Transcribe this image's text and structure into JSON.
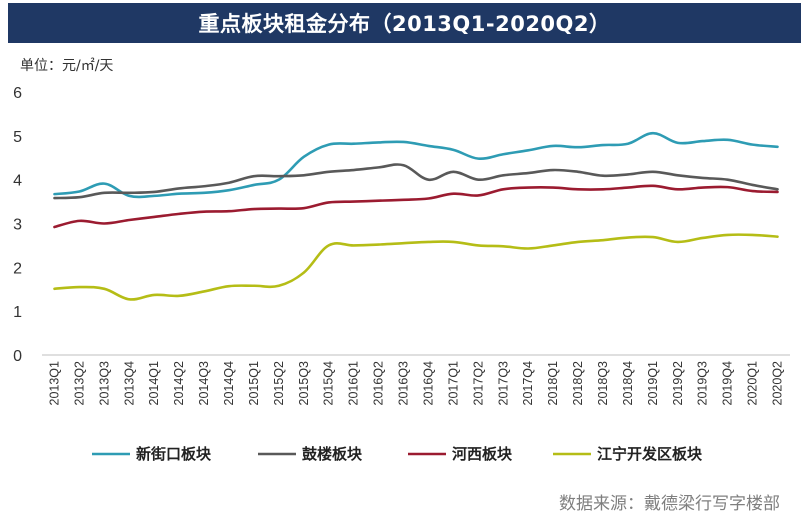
{
  "title": "重点板块租金分布（2013Q1-2020Q2）",
  "unit_label": "单位：元/㎡/天",
  "source": "数据来源：戴德梁行写字楼部",
  "chart_data": {
    "type": "line",
    "title": "重点板块租金分布（2013Q1-2020Q2）",
    "ylabel": "单位：元/㎡/天",
    "xlabel": "",
    "ylim": [
      0,
      6
    ],
    "yticks": [
      0,
      1,
      2,
      3,
      4,
      5,
      6
    ],
    "grid": false,
    "legend_position": "bottom",
    "categories": [
      "2013Q1",
      "2013Q2",
      "2013Q3",
      "2013Q4",
      "2014Q1",
      "2014Q2",
      "2014Q3",
      "2014Q4",
      "2015Q1",
      "2015Q2",
      "2015Q3",
      "2015Q4",
      "2016Q1",
      "2016Q2",
      "2016Q3",
      "2016Q4",
      "2017Q1",
      "2017Q2",
      "2017Q3",
      "2017Q4",
      "2018Q1",
      "2018Q2",
      "2018Q3",
      "2018Q4",
      "2019Q1",
      "2019Q2",
      "2019Q3",
      "2019Q4",
      "2020Q1",
      "2020Q2"
    ],
    "series": [
      {
        "name": "新街口板块",
        "color": "#2e9cb4",
        "values": [
          3.67,
          3.73,
          3.91,
          3.63,
          3.63,
          3.68,
          3.7,
          3.76,
          3.88,
          4.0,
          4.52,
          4.8,
          4.82,
          4.85,
          4.86,
          4.77,
          4.68,
          4.48,
          4.58,
          4.67,
          4.77,
          4.74,
          4.79,
          4.82,
          5.06,
          4.84,
          4.88,
          4.91,
          4.8,
          4.75
        ]
      },
      {
        "name": "鼓楼板块",
        "color": "#595959",
        "values": [
          3.58,
          3.6,
          3.7,
          3.7,
          3.72,
          3.8,
          3.85,
          3.93,
          4.08,
          4.08,
          4.1,
          4.18,
          4.22,
          4.28,
          4.33,
          4.0,
          4.18,
          4.0,
          4.1,
          4.15,
          4.22,
          4.18,
          4.09,
          4.12,
          4.18,
          4.1,
          4.04,
          4.0,
          3.88,
          3.78
        ]
      },
      {
        "name": "河西板块",
        "color": "#9b1b30",
        "values": [
          2.92,
          3.06,
          3.0,
          3.08,
          3.15,
          3.22,
          3.27,
          3.28,
          3.33,
          3.34,
          3.35,
          3.48,
          3.5,
          3.52,
          3.54,
          3.57,
          3.68,
          3.64,
          3.78,
          3.82,
          3.82,
          3.78,
          3.78,
          3.82,
          3.86,
          3.78,
          3.82,
          3.83,
          3.74,
          3.72
        ]
      },
      {
        "name": "江宁开发区板块",
        "color": "#b5bd16",
        "values": [
          1.51,
          1.55,
          1.51,
          1.27,
          1.37,
          1.35,
          1.45,
          1.57,
          1.58,
          1.58,
          1.88,
          2.5,
          2.5,
          2.52,
          2.55,
          2.58,
          2.58,
          2.5,
          2.48,
          2.43,
          2.5,
          2.58,
          2.62,
          2.68,
          2.69,
          2.58,
          2.67,
          2.74,
          2.74,
          2.7
        ]
      }
    ]
  }
}
